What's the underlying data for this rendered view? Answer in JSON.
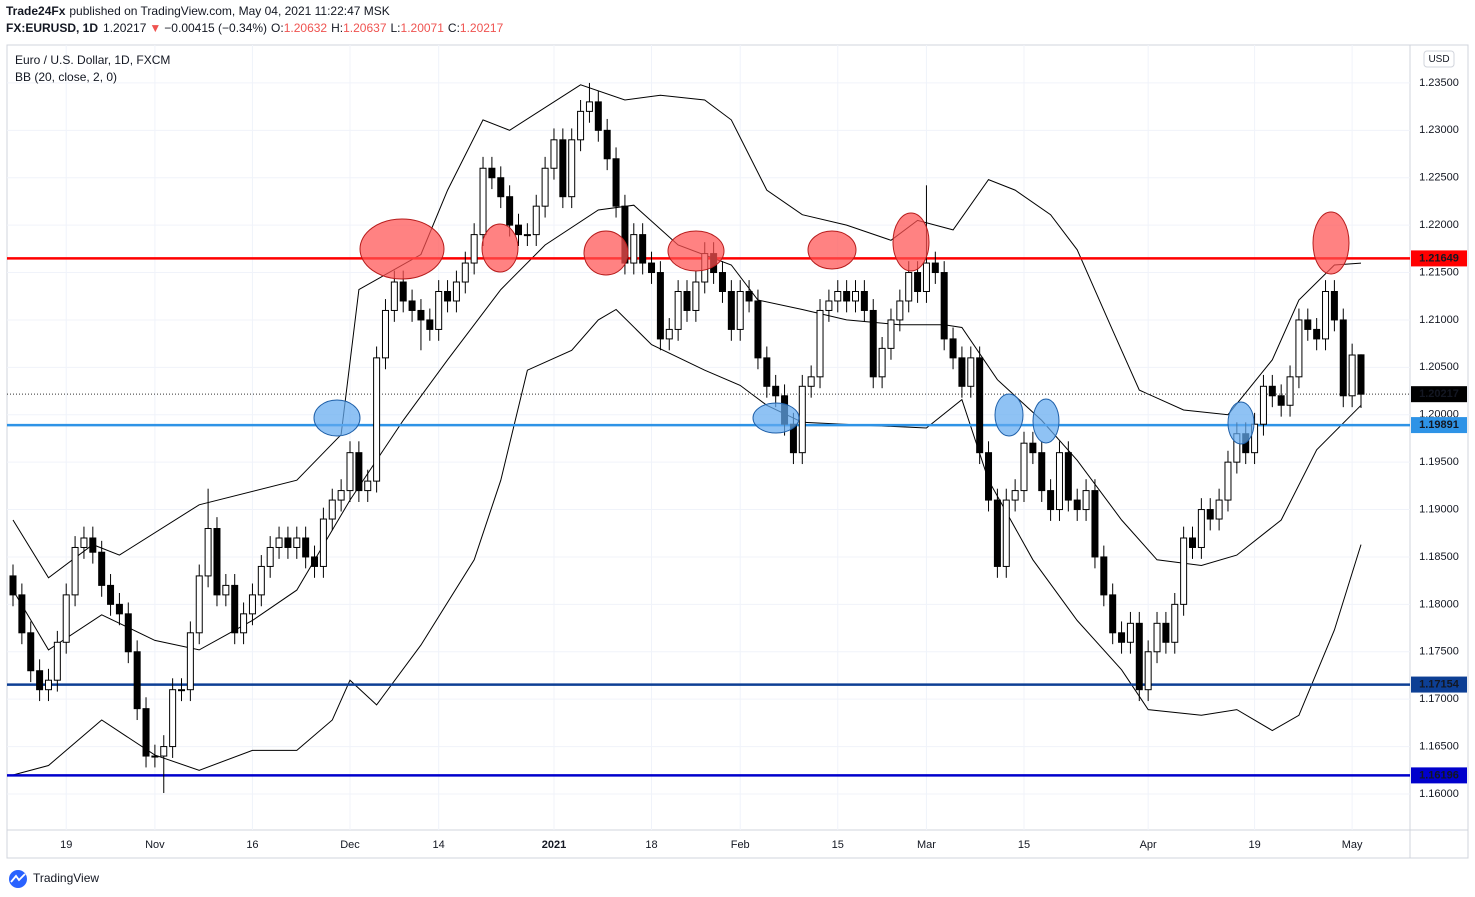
{
  "header": {
    "publisher": "Trade24Fx",
    "published": "published on TradingView.com, May 04, 2021 11:22:47 MSK",
    "symbol": "FX:EURUSD, 1D",
    "arrow": "▼",
    "change": "−0.00415 (−0.34%)",
    "ohlc_labels": [
      "O:",
      "H:",
      "L:",
      "C:"
    ]
  },
  "footer": {
    "brand": "TradingView"
  },
  "chart_data": {
    "type": "candlestick",
    "title": "Euro / U.S. Dollar, 1D, FXCM",
    "indicator_label": "BB (20, close, 2, 0)",
    "currency": "USD",
    "categories": [
      null,
      null,
      null,
      null,
      null,
      null,
      "19",
      null,
      null,
      null,
      null,
      null,
      null,
      null,
      null,
      null,
      "Nov",
      null,
      null,
      null,
      null,
      null,
      null,
      null,
      null,
      null,
      null,
      "16",
      null,
      null,
      null,
      null,
      null,
      null,
      null,
      null,
      null,
      null,
      "Dec",
      null,
      null,
      null,
      null,
      null,
      null,
      null,
      null,
      null,
      "14",
      null,
      null,
      null,
      null,
      null,
      null,
      null,
      null,
      null,
      null,
      null,
      null,
      "2021",
      null,
      null,
      null,
      null,
      null,
      null,
      null,
      null,
      null,
      null,
      "18",
      null,
      null,
      null,
      null,
      null,
      null,
      null,
      null,
      null,
      "Feb",
      null,
      null,
      null,
      null,
      null,
      null,
      null,
      null,
      null,
      null,
      "15",
      null,
      null,
      null,
      null,
      null,
      null,
      null,
      null,
      null,
      "Mar",
      null,
      null,
      null,
      null,
      null,
      null,
      null,
      null,
      null,
      null,
      "15",
      null,
      null,
      null,
      null,
      null,
      null,
      null,
      null,
      null,
      null,
      null,
      null,
      null,
      "Apr",
      null,
      null,
      null,
      null,
      null,
      null,
      null,
      null,
      null,
      null,
      null,
      "19",
      null,
      null,
      null,
      null,
      null,
      null,
      null,
      null,
      null,
      null,
      "May",
      null
    ],
    "open": [
      1.183,
      1.181,
      1.177,
      1.173,
      1.171,
      1.172,
      1.176,
      1.181,
      1.186,
      1.187,
      1.1855,
      1.182,
      1.18,
      1.179,
      1.175,
      1.169,
      1.164,
      1.164,
      1.165,
      1.171,
      1.171,
      1.177,
      1.183,
      1.188,
      1.181,
      1.182,
      1.177,
      1.179,
      1.181,
      1.184,
      1.186,
      1.187,
      1.186,
      1.187,
      1.185,
      1.184,
      1.189,
      1.191,
      1.192,
      1.196,
      1.192,
      1.193,
      1.206,
      1.211,
      1.214,
      1.212,
      1.211,
      1.21,
      1.209,
      1.213,
      1.212,
      1.214,
      1.216,
      1.219,
      1.226,
      1.225,
      1.223,
      1.22,
      1.219,
      1.219,
      1.222,
      1.226,
      1.229,
      1.223,
      1.229,
      1.232,
      1.233,
      1.23,
      1.227,
      1.222,
      1.216,
      1.219,
      1.216,
      1.215,
      1.208,
      1.209,
      1.213,
      1.211,
      1.214,
      1.217,
      1.215,
      1.213,
      1.209,
      1.213,
      1.212,
      1.206,
      1.203,
      1.202,
      1.199,
      1.196,
      1.203,
      1.204,
      1.211,
      1.212,
      1.213,
      1.212,
      1.213,
      1.211,
      1.204,
      1.207,
      1.21,
      1.212,
      1.215,
      1.213,
      1.216,
      1.215,
      1.208,
      1.206,
      1.203,
      1.206,
      1.196,
      1.191,
      1.184,
      1.191,
      1.192,
      1.197,
      1.196,
      1.192,
      1.19,
      1.196,
      1.191,
      1.19,
      1.192,
      1.185,
      1.181,
      1.177,
      1.176,
      1.178,
      1.171,
      1.175,
      1.178,
      1.176,
      1.18,
      1.187,
      1.186,
      1.19,
      1.189,
      1.191,
      1.195,
      1.198,
      1.196,
      1.199,
      1.203,
      1.202,
      1.201,
      1.204,
      1.21,
      1.209,
      1.208,
      1.213,
      1.21,
      1.202,
      1.20632
    ],
    "high": [
      1.1842,
      1.1822,
      1.1782,
      1.1742,
      1.1732,
      1.1772,
      1.1822,
      1.1872,
      1.1882,
      1.1882,
      1.1867,
      1.1832,
      1.1812,
      1.1802,
      1.1762,
      1.1702,
      1.1652,
      1.1662,
      1.1722,
      1.1722,
      1.1782,
      1.1842,
      1.1922,
      1.1892,
      1.1832,
      1.1832,
      1.1802,
      1.1822,
      1.1852,
      1.1872,
      1.1882,
      1.1882,
      1.1882,
      1.1882,
      1.1862,
      1.1902,
      1.1922,
      1.1932,
      1.1972,
      1.1972,
      1.1942,
      1.2072,
      1.2122,
      1.2152,
      1.2152,
      1.2132,
      1.2122,
      1.2112,
      1.2142,
      1.2142,
      1.2152,
      1.2172,
      1.2202,
      1.2272,
      1.2272,
      1.2262,
      1.2242,
      1.2212,
      1.2202,
      1.2232,
      1.2272,
      1.2302,
      1.2302,
      1.2302,
      1.2332,
      1.235,
      1.2342,
      1.2312,
      1.2282,
      1.2232,
      1.2202,
      1.2202,
      1.2172,
      1.2162,
      1.2102,
      1.2142,
      1.2142,
      1.2152,
      1.2182,
      1.2182,
      1.2162,
      1.2142,
      1.2142,
      1.2142,
      1.2132,
      1.2072,
      1.2042,
      1.2032,
      1.2002,
      1.2042,
      1.2052,
      1.2122,
      1.2132,
      1.2142,
      1.2142,
      1.2142,
      1.2142,
      1.2122,
      1.2082,
      1.2112,
      1.2132,
      1.2162,
      1.2162,
      1.2242,
      1.2172,
      1.2162,
      1.2092,
      1.2072,
      1.2072,
      1.2072,
      1.1972,
      1.1922,
      1.1922,
      1.1932,
      1.1982,
      1.1982,
      1.1972,
      1.1932,
      1.1972,
      1.1972,
      1.1922,
      1.1932,
      1.1932,
      1.1862,
      1.1822,
      1.1782,
      1.1792,
      1.1792,
      1.1762,
      1.1792,
      1.1792,
      1.1812,
      1.1882,
      1.1882,
      1.1912,
      1.1912,
      1.1922,
      1.1962,
      1.1992,
      1.1992,
      1.2002,
      1.2042,
      1.2042,
      1.2032,
      1.2052,
      1.2112,
      1.2112,
      1.2102,
      1.2142,
      1.2142,
      1.2112,
      1.2075,
      1.20637
    ],
    "low": [
      1.1798,
      1.1758,
      1.1718,
      1.1698,
      1.1698,
      1.1708,
      1.1748,
      1.1798,
      1.1848,
      1.1843,
      1.1808,
      1.1788,
      1.1778,
      1.1738,
      1.1678,
      1.1628,
      1.1628,
      1.1601,
      1.1638,
      1.1698,
      1.1698,
      1.1758,
      1.1818,
      1.1798,
      1.1798,
      1.1758,
      1.1758,
      1.1778,
      1.1798,
      1.1828,
      1.1848,
      1.1848,
      1.1848,
      1.1838,
      1.1828,
      1.1828,
      1.1878,
      1.1898,
      1.1908,
      1.1908,
      1.1908,
      1.1918,
      1.2048,
      1.2098,
      1.2108,
      1.2098,
      1.2068,
      1.2078,
      1.2078,
      1.2108,
      1.2108,
      1.2128,
      1.2148,
      1.2178,
      1.2238,
      1.2218,
      1.2188,
      1.2178,
      1.2178,
      1.2178,
      1.2208,
      1.2248,
      1.2218,
      1.2218,
      1.2278,
      1.2308,
      1.2288,
      1.2258,
      1.2208,
      1.2148,
      1.2148,
      1.2148,
      1.2138,
      1.2068,
      1.2068,
      1.2078,
      1.2098,
      1.2098,
      1.2128,
      1.2138,
      1.2118,
      1.2078,
      1.2078,
      1.2108,
      1.2048,
      1.2018,
      1.2008,
      1.1978,
      1.1948,
      1.1948,
      1.2018,
      1.2028,
      1.2098,
      1.2108,
      1.2108,
      1.2108,
      1.2098,
      1.2028,
      1.2028,
      1.2058,
      1.2088,
      1.2108,
      1.2118,
      1.2118,
      1.2138,
      1.2068,
      1.2048,
      1.2018,
      1.2018,
      1.1948,
      1.1898,
      1.1828,
      1.1828,
      1.1898,
      1.1908,
      1.1948,
      1.1908,
      1.1888,
      1.1888,
      1.1898,
      1.1888,
      1.1888,
      1.1838,
      1.1798,
      1.1758,
      1.1748,
      1.1748,
      1.1698,
      1.1698,
      1.1738,
      1.1748,
      1.1748,
      1.1788,
      1.1848,
      1.1848,
      1.1878,
      1.1878,
      1.1898,
      1.1938,
      1.1948,
      1.1948,
      1.1978,
      1.2008,
      1.1998,
      1.1998,
      1.2028,
      1.2078,
      1.2068,
      1.2068,
      1.2088,
      1.2008,
      1.2008,
      1.20071
    ],
    "close": [
      1.181,
      1.177,
      1.173,
      1.171,
      1.172,
      1.176,
      1.181,
      1.186,
      1.187,
      1.1855,
      1.182,
      1.18,
      1.179,
      1.175,
      1.169,
      1.164,
      1.164,
      1.165,
      1.171,
      1.171,
      1.177,
      1.183,
      1.188,
      1.181,
      1.182,
      1.177,
      1.179,
      1.181,
      1.184,
      1.186,
      1.187,
      1.186,
      1.187,
      1.185,
      1.184,
      1.189,
      1.191,
      1.192,
      1.196,
      1.192,
      1.193,
      1.206,
      1.211,
      1.214,
      1.212,
      1.211,
      1.21,
      1.209,
      1.213,
      1.212,
      1.214,
      1.216,
      1.219,
      1.226,
      1.225,
      1.223,
      1.22,
      1.219,
      1.219,
      1.222,
      1.226,
      1.229,
      1.223,
      1.229,
      1.232,
      1.233,
      1.23,
      1.227,
      1.222,
      1.216,
      1.219,
      1.216,
      1.215,
      1.208,
      1.209,
      1.213,
      1.211,
      1.214,
      1.217,
      1.215,
      1.213,
      1.209,
      1.213,
      1.212,
      1.206,
      1.203,
      1.202,
      1.199,
      1.196,
      1.203,
      1.204,
      1.211,
      1.212,
      1.213,
      1.212,
      1.213,
      1.211,
      1.204,
      1.207,
      1.21,
      1.212,
      1.215,
      1.213,
      1.216,
      1.215,
      1.208,
      1.206,
      1.203,
      1.206,
      1.196,
      1.191,
      1.184,
      1.191,
      1.192,
      1.197,
      1.196,
      1.192,
      1.19,
      1.196,
      1.191,
      1.19,
      1.192,
      1.185,
      1.181,
      1.177,
      1.176,
      1.178,
      1.171,
      1.175,
      1.178,
      1.176,
      1.18,
      1.187,
      1.186,
      1.19,
      1.189,
      1.191,
      1.195,
      1.198,
      1.196,
      1.199,
      1.203,
      1.202,
      1.201,
      1.204,
      1.21,
      1.209,
      1.208,
      1.213,
      1.21,
      1.202,
      1.2063,
      1.20217
    ],
    "up_color": "#ffffff",
    "down_color": "#000000",
    "wick_color": "#000000",
    "ylim": [
      1.1562,
      1.239
    ],
    "yticks": [
      {
        "value": 1.16,
        "label": "1.16000"
      },
      {
        "value": 1.165,
        "label": "1.16500"
      },
      {
        "value": 1.17,
        "label": "1.17000"
      },
      {
        "value": 1.175,
        "label": "1.17500"
      },
      {
        "value": 1.18,
        "label": "1.18000"
      },
      {
        "value": 1.185,
        "label": "1.18500"
      },
      {
        "value": 1.19,
        "label": "1.19000"
      },
      {
        "value": 1.195,
        "label": "1.19500"
      },
      {
        "value": 1.2,
        "label": "1.20000"
      },
      {
        "value": 1.205,
        "label": "1.20500"
      },
      {
        "value": 1.21,
        "label": "1.21000"
      },
      {
        "value": 1.215,
        "label": "1.21500"
      },
      {
        "value": 1.22,
        "label": "1.22000"
      },
      {
        "value": 1.225,
        "label": "1.22500"
      },
      {
        "value": 1.23,
        "label": "1.23000"
      },
      {
        "value": 1.235,
        "label": "1.23500"
      }
    ],
    "grid": true,
    "last_price": 1.20217,
    "levels": [
      {
        "value": 1.21649,
        "color": "#ff0000"
      },
      {
        "value": 1.19891,
        "color": "#2e93e6"
      },
      {
        "value": 1.17154,
        "color": "#0d3f94"
      },
      {
        "value": 1.16196,
        "color": "#0000cc"
      }
    ],
    "bollinger": {
      "color": "#000000",
      "upper": {
        "x": [
          0,
          4,
          9,
          12,
          21,
          32,
          37,
          39,
          46,
          49,
          53,
          56,
          64,
          69,
          73,
          78,
          81,
          85,
          89,
          94,
          99,
          102,
          106,
          110,
          113,
          117,
          120,
          124,
          127,
          132,
          137,
          142,
          145,
          149,
          152
        ],
        "values": [
          1.1889,
          1.1828,
          1.1863,
          1.1852,
          1.1905,
          1.1931,
          1.1979,
          1.2132,
          1.2169,
          1.2237,
          1.2311,
          1.23,
          1.2348,
          1.2332,
          1.2337,
          1.2332,
          1.2311,
          1.2237,
          1.2211,
          1.22,
          1.2184,
          1.2205,
          1.2195,
          1.2248,
          1.2237,
          1.2211,
          1.2174,
          1.2089,
          1.2026,
          1.2005,
          1.2,
          1.2058,
          1.2121,
          1.2158,
          1.216
        ]
      },
      "middle": {
        "x": [
          0,
          4,
          10,
          16,
          21,
          27,
          32,
          38,
          44,
          49,
          55,
          60,
          66,
          70,
          75,
          81,
          84,
          89,
          94,
          100,
          105,
          107,
          111,
          116,
          120,
          125,
          129,
          134,
          138,
          143,
          147,
          152
        ],
        "values": [
          1.1815,
          1.1752,
          1.1789,
          1.1762,
          1.1752,
          1.1783,
          1.1815,
          1.191,
          1.1994,
          1.2058,
          1.2132,
          1.2179,
          1.2216,
          1.2221,
          1.2179,
          1.2158,
          1.2121,
          1.2111,
          1.21,
          1.2095,
          1.2095,
          1.2092,
          1.2037,
          1.1994,
          1.1952,
          1.1889,
          1.1847,
          1.1841,
          1.1852,
          1.1889,
          1.1963,
          1.201
        ]
      },
      "lower": {
        "x": [
          0,
          4,
          10,
          16,
          21,
          27,
          32,
          36,
          38,
          41,
          46,
          52,
          55,
          58,
          63,
          66,
          68,
          72,
          78,
          82,
          85,
          89,
          96,
          103,
          107,
          110,
          115,
          120,
          125,
          128,
          134,
          138,
          142,
          145,
          149,
          152
        ],
        "values": [
          1.162,
          1.163,
          1.1678,
          1.1641,
          1.1625,
          1.1646,
          1.1646,
          1.1678,
          1.172,
          1.1694,
          1.1757,
          1.1847,
          1.1931,
          1.2047,
          1.2068,
          1.21,
          1.2111,
          1.2074,
          1.2047,
          1.2031,
          1.201,
          1.1992,
          1.1989,
          1.1986,
          1.2016,
          1.1931,
          1.1847,
          1.1783,
          1.1731,
          1.1689,
          1.1683,
          1.1689,
          1.1667,
          1.1683,
          1.1773,
          1.1863
        ]
      }
    }
  }
}
